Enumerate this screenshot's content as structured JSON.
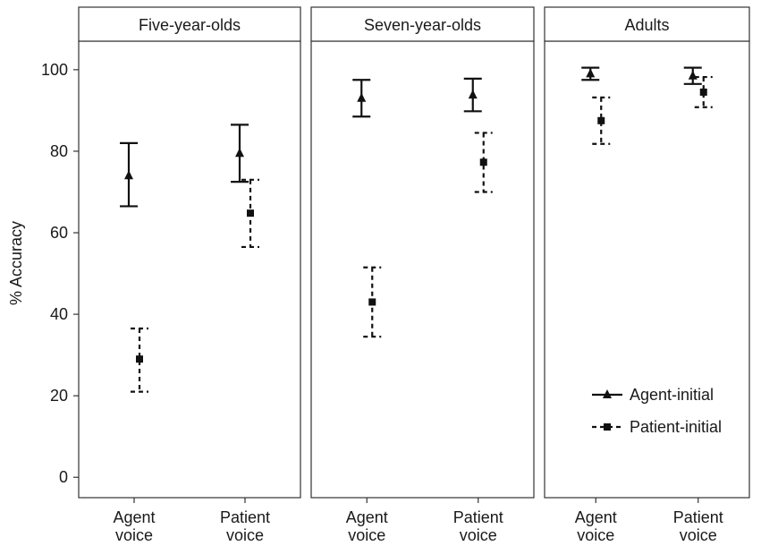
{
  "chart_data": {
    "type": "scatter",
    "ylabel": "% Accuracy",
    "ylim": [
      -5,
      107
    ],
    "yticks": [
      0,
      20,
      40,
      60,
      80,
      100
    ],
    "categories": [
      [
        "Agent",
        "voice"
      ],
      [
        "Patient",
        "voice"
      ]
    ],
    "series_names": [
      "Agent-initial",
      "Patient-initial"
    ],
    "legend_position": "bottom-right of last panel",
    "grid": false,
    "panels": [
      {
        "title": "Five-year-olds",
        "series": [
          {
            "name": "Agent-initial",
            "points": [
              {
                "x": "Agent voice",
                "y": 74,
                "ymin": 66.5,
                "ymax": 82
              },
              {
                "x": "Patient voice",
                "y": 79.5,
                "ymin": 72.5,
                "ymax": 86.5
              }
            ]
          },
          {
            "name": "Patient-initial",
            "points": [
              {
                "x": "Agent voice",
                "y": 29,
                "ymin": 21,
                "ymax": 36.5
              },
              {
                "x": "Patient voice",
                "y": 64.8,
                "ymin": 56.5,
                "ymax": 73
              }
            ]
          }
        ]
      },
      {
        "title": "Seven-year-olds",
        "series": [
          {
            "name": "Agent-initial",
            "points": [
              {
                "x": "Agent voice",
                "y": 93,
                "ymin": 88.5,
                "ymax": 97.5
              },
              {
                "x": "Patient voice",
                "y": 93.8,
                "ymin": 89.8,
                "ymax": 97.8
              }
            ]
          },
          {
            "name": "Patient-initial",
            "points": [
              {
                "x": "Agent voice",
                "y": 43,
                "ymin": 34.5,
                "ymax": 51.5
              },
              {
                "x": "Patient voice",
                "y": 77.3,
                "ymin": 70,
                "ymax": 84.5
              }
            ]
          }
        ]
      },
      {
        "title": "Adults",
        "series": [
          {
            "name": "Agent-initial",
            "points": [
              {
                "x": "Agent voice",
                "y": 99,
                "ymin": 97.5,
                "ymax": 100.5
              },
              {
                "x": "Patient voice",
                "y": 98.5,
                "ymin": 96.5,
                "ymax": 100.5
              }
            ]
          },
          {
            "name": "Patient-initial",
            "points": [
              {
                "x": "Agent voice",
                "y": 87.5,
                "ymin": 81.8,
                "ymax": 93.2
              },
              {
                "x": "Patient voice",
                "y": 94.5,
                "ymin": 90.8,
                "ymax": 98.2
              }
            ]
          }
        ]
      }
    ]
  }
}
